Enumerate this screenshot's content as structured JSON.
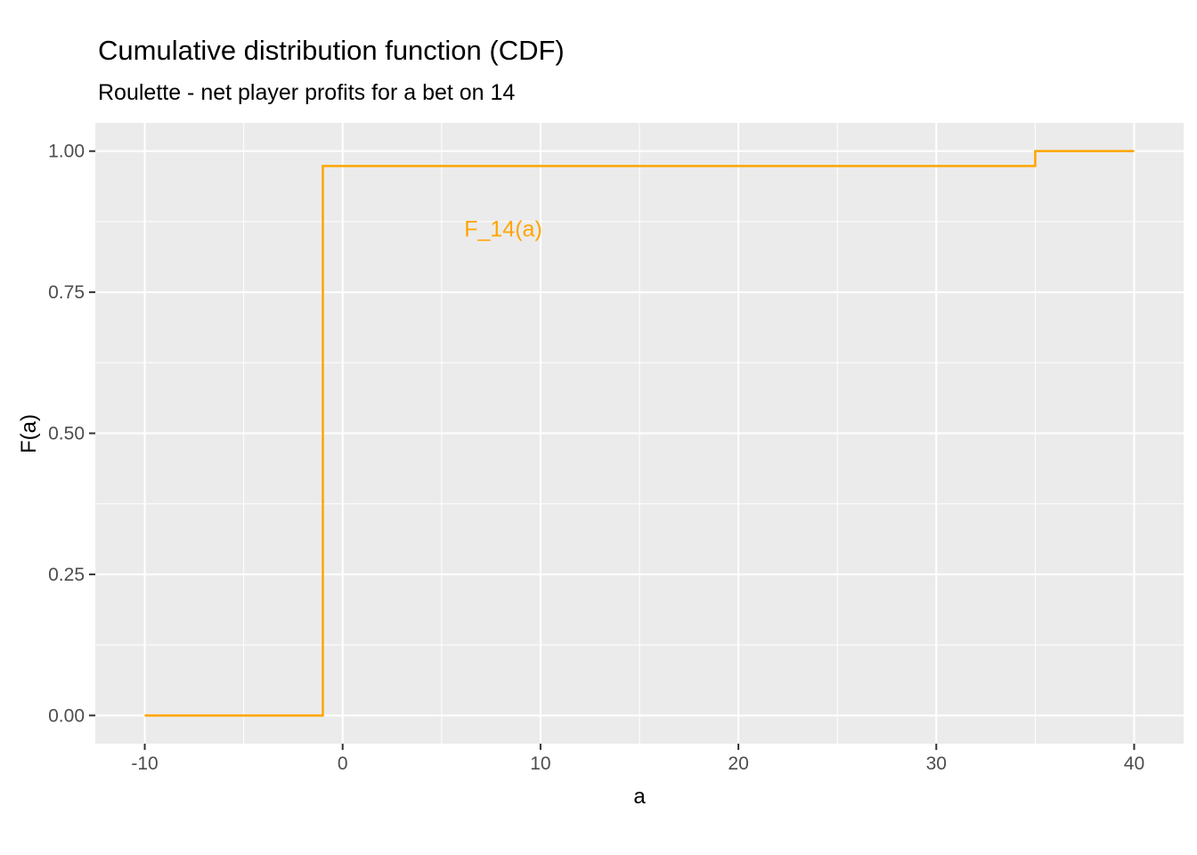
{
  "chart_data": {
    "type": "line",
    "subtype": "step-function-cdf",
    "title": "Cumulative distribution function (CDF)",
    "subtitle": "Roulette - net player profits for a bet on 14",
    "xlabel": "a",
    "ylabel": "F(a)",
    "xlim": [
      -12.5,
      42.5
    ],
    "ylim": [
      -0.05,
      1.05
    ],
    "grid": "on",
    "legend_position": "none",
    "x_ticks": [
      {
        "value": -10,
        "label": "-10"
      },
      {
        "value": 0,
        "label": "0"
      },
      {
        "value": 10,
        "label": "10"
      },
      {
        "value": 20,
        "label": "20"
      },
      {
        "value": 30,
        "label": "30"
      },
      {
        "value": 40,
        "label": "40"
      }
    ],
    "y_ticks": [
      {
        "value": 0.0,
        "label": "0.00"
      },
      {
        "value": 0.25,
        "label": "0.25"
      },
      {
        "value": 0.5,
        "label": "0.50"
      },
      {
        "value": 0.75,
        "label": "0.75"
      },
      {
        "value": 1.0,
        "label": "1.00"
      }
    ],
    "x_minor_gridlines": [
      -5,
      5,
      15,
      25,
      35
    ],
    "y_minor_gridlines": [
      0.125,
      0.375,
      0.625,
      0.875
    ],
    "series": [
      {
        "name": "F_14(a)",
        "color": "#FFA500",
        "points": [
          [
            -10,
            0
          ],
          [
            -1,
            0
          ],
          [
            -1,
            0.9737
          ],
          [
            35,
            0.9737
          ],
          [
            35,
            1.0
          ],
          [
            40,
            1.0
          ]
        ]
      }
    ],
    "annotation": {
      "text": "F_14(a)",
      "x": 8,
      "y": 0.86,
      "color": "#FFA500"
    },
    "colors": {
      "panel_background": "#EBEBEB",
      "gridline": "#FFFFFF",
      "tick_label_text": "#4D4D4D",
      "tick_mark": "#333333",
      "title_text": "#000000"
    }
  }
}
